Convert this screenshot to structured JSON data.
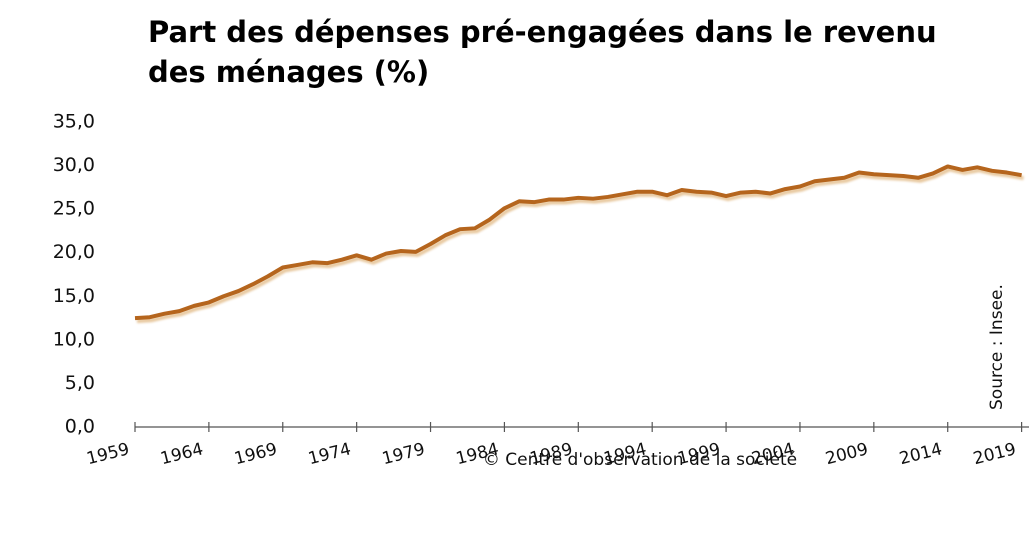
{
  "chart_data": {
    "type": "line",
    "title": "Part des dépenses pré-engagées dans le revenu des ménages (%)",
    "annotations": [
      "© Centre d'observation de la  société",
      "Source : Insee."
    ],
    "x": [
      1959,
      1960,
      1961,
      1962,
      1963,
      1964,
      1965,
      1966,
      1967,
      1968,
      1969,
      1970,
      1971,
      1972,
      1973,
      1974,
      1975,
      1976,
      1977,
      1978,
      1979,
      1980,
      1981,
      1982,
      1983,
      1984,
      1985,
      1986,
      1987,
      1988,
      1989,
      1990,
      1991,
      1992,
      1993,
      1994,
      1995,
      1996,
      1997,
      1998,
      1999,
      2000,
      2001,
      2002,
      2003,
      2004,
      2005,
      2006,
      2007,
      2008,
      2009,
      2010,
      2011,
      2012,
      2013,
      2014,
      2015,
      2016,
      2017,
      2018,
      2019
    ],
    "series": [
      {
        "color": "#b5651d",
        "values": [
          12.5,
          12.6,
          13.0,
          13.3,
          13.9,
          14.3,
          15.0,
          15.6,
          16.4,
          17.3,
          18.3,
          18.6,
          18.9,
          18.8,
          19.2,
          19.7,
          19.2,
          19.9,
          20.2,
          20.1,
          21.0,
          22.0,
          22.7,
          22.8,
          23.8,
          25.1,
          25.9,
          25.8,
          26.1,
          26.1,
          26.3,
          26.2,
          26.4,
          26.7,
          27.0,
          27.0,
          26.6,
          27.2,
          27.0,
          26.9,
          26.5,
          26.9,
          27.0,
          26.8,
          27.3,
          27.6,
          28.2,
          28.4,
          28.6,
          29.2,
          29.0,
          28.9,
          28.8,
          28.6,
          29.1,
          29.9,
          29.5,
          29.8,
          29.4,
          29.2,
          28.9
        ]
      }
    ],
    "xlim": [
      1959,
      2019.5
    ],
    "xticks": [
      1959,
      1964,
      1969,
      1974,
      1979,
      1984,
      1989,
      1994,
      1999,
      2004,
      2009,
      2014,
      2019
    ],
    "ylim": [
      0,
      35
    ],
    "yticks": [
      {
        "value": 0,
        "label": "0,0"
      },
      {
        "value": 5,
        "label": "5,0"
      },
      {
        "value": 10,
        "label": "10,0"
      },
      {
        "value": 15,
        "label": "15,0"
      },
      {
        "value": 20,
        "label": "20,0"
      },
      {
        "value": 25,
        "label": "25,0"
      },
      {
        "value": 30,
        "label": "30,0"
      },
      {
        "value": 35,
        "label": "35,0"
      }
    ],
    "grid": false
  }
}
